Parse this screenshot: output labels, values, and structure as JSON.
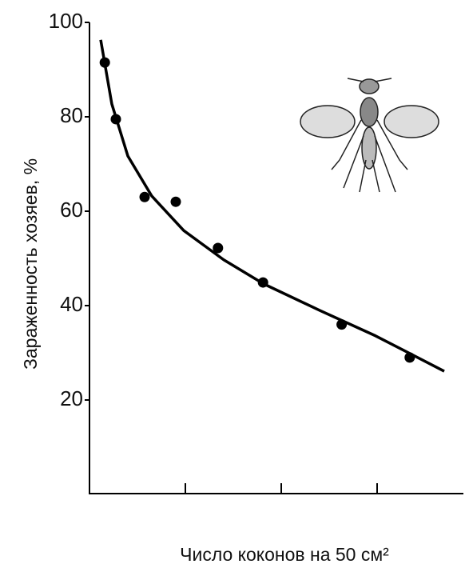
{
  "chart_data": {
    "type": "scatter",
    "ylabel": "Зараженность хозяев, %",
    "xlabel": "Число коконов на 50 см²",
    "points": {
      "color": "#000000",
      "x": [
        0.16,
        0.275,
        0.575,
        0.9,
        1.34,
        1.81,
        2.63,
        3.34
      ],
      "y": [
        91.5,
        79.5,
        63,
        62,
        52.2,
        44.9,
        36,
        29
      ]
    },
    "curve": {
      "color": "#000000",
      "x": [
        0.117,
        0.233,
        0.4,
        0.65,
        0.983,
        1.4,
        1.817,
        2.4,
        2.983,
        3.7
      ],
      "y": [
        96.3,
        82.7,
        71.7,
        63.2,
        55.9,
        49.7,
        44.6,
        39,
        33.6,
        26.1
      ]
    },
    "xlim": [
      0,
      3.9
    ],
    "xticks": [
      1,
      2,
      3
    ],
    "ylim": [
      0,
      100
    ],
    "yticks": [
      20,
      40,
      60,
      80,
      100
    ]
  }
}
